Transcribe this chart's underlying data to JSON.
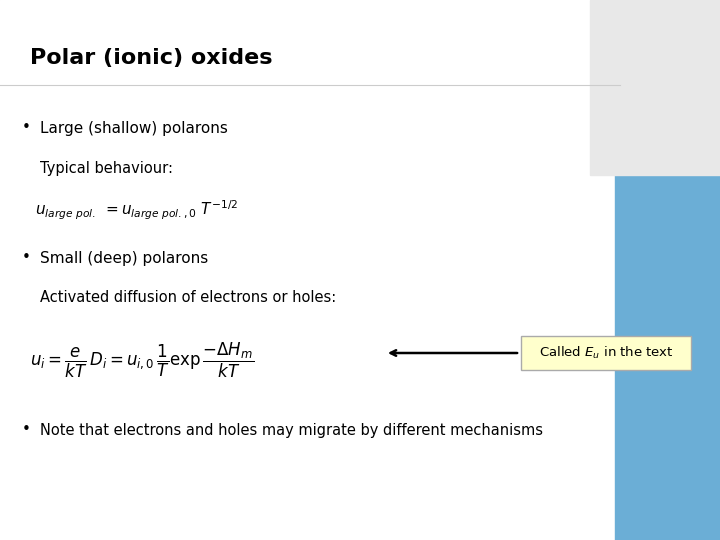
{
  "title": "Polar (ionic) oxides",
  "title_fontsize": 16,
  "bg_color": "#f0f0f0",
  "text_color": "#000000",
  "bullet1": "Large (shallow) polarons",
  "typical_label": "Typical behaviour:",
  "bullet2": "Small (deep) polarons",
  "activated_label": "Activated diffusion of electrons or holes:",
  "note_bullet": "Note that electrons and holes may migrate by different mechanisms",
  "callout_bg": "#ffffcc",
  "callout_border": "#cccc00",
  "right_bar_color": "#6baed6",
  "font_family": "DejaVu Sans"
}
